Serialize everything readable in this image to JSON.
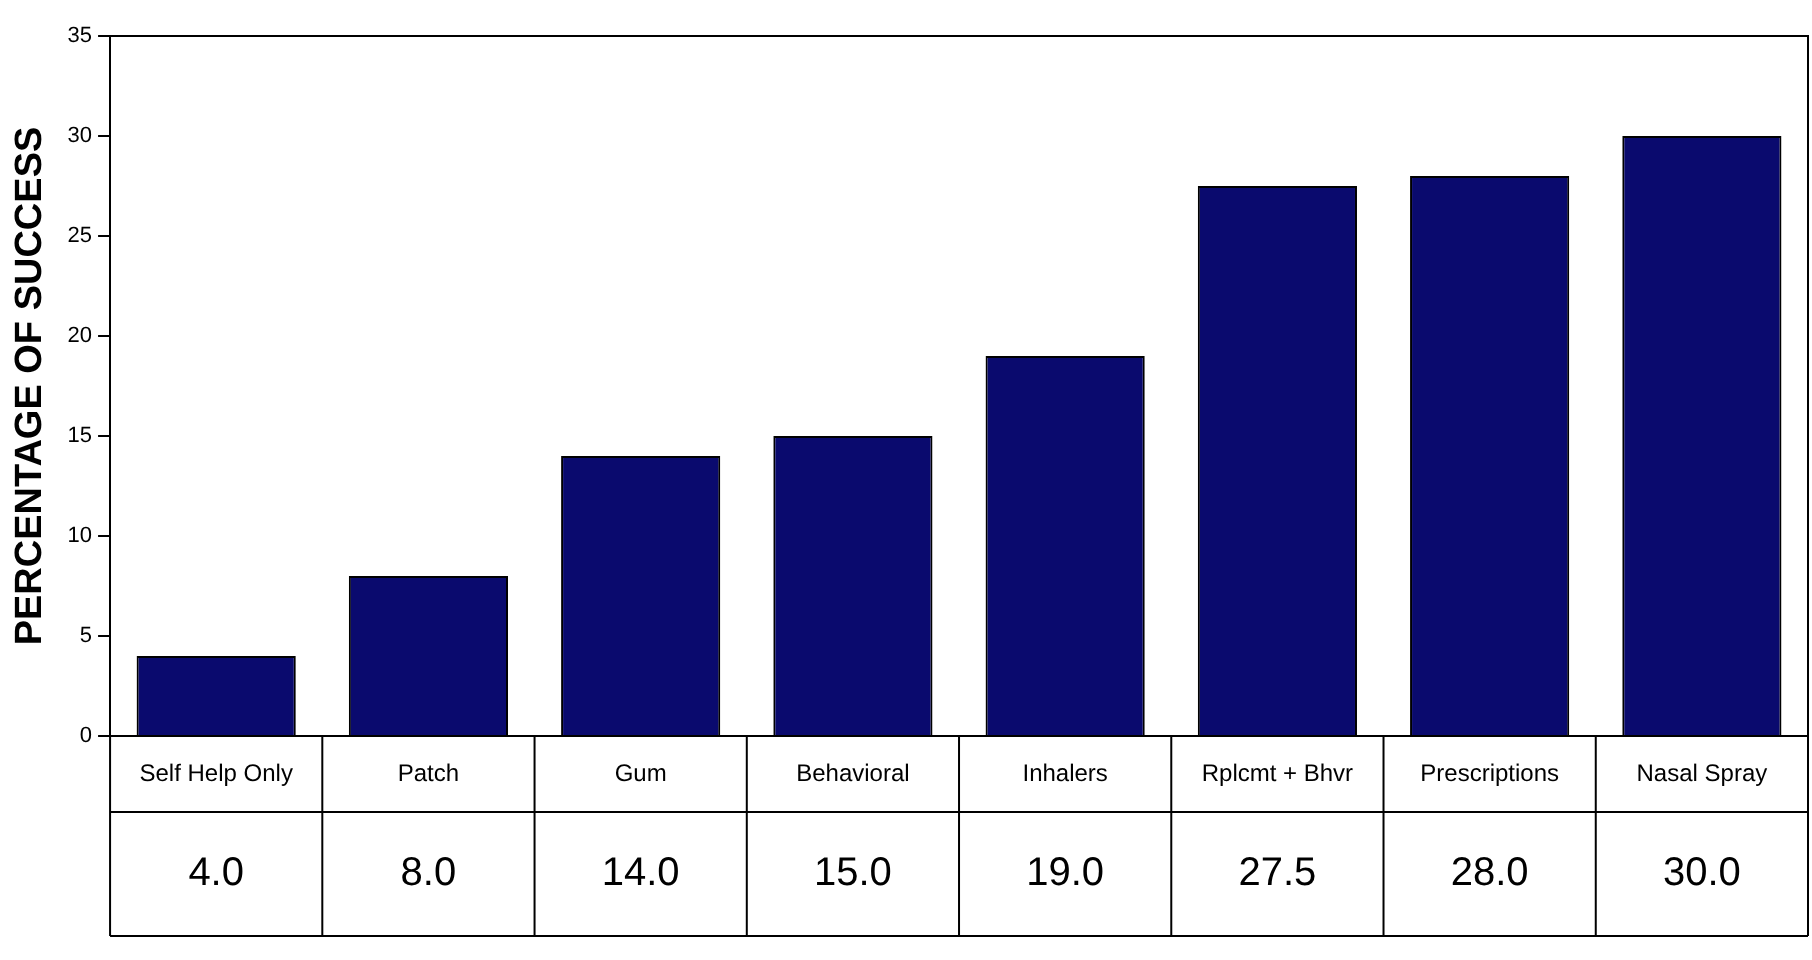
{
  "chart_data": {
    "type": "bar",
    "ylabel": "PERCENTAGE OF SUCCESS",
    "categories": [
      "Self Help Only",
      "Patch",
      "Gum",
      "Behavioral",
      "Inhalers",
      "Rplcmt + Bhvr",
      "Prescriptions",
      "Nasal Spray"
    ],
    "values": [
      4.0,
      8.0,
      14.0,
      15.0,
      19.0,
      27.5,
      28.0,
      30.0
    ],
    "value_labels": [
      "4.0",
      "8.0",
      "14.0",
      "15.0",
      "19.0",
      "27.5",
      "28.0",
      "30.0"
    ],
    "color": "#0a0a6e",
    "ylim": [
      0,
      35
    ],
    "yticks": [
      0,
      5,
      10,
      15,
      20,
      25,
      30,
      35
    ],
    "grid": false,
    "legend": false
  }
}
